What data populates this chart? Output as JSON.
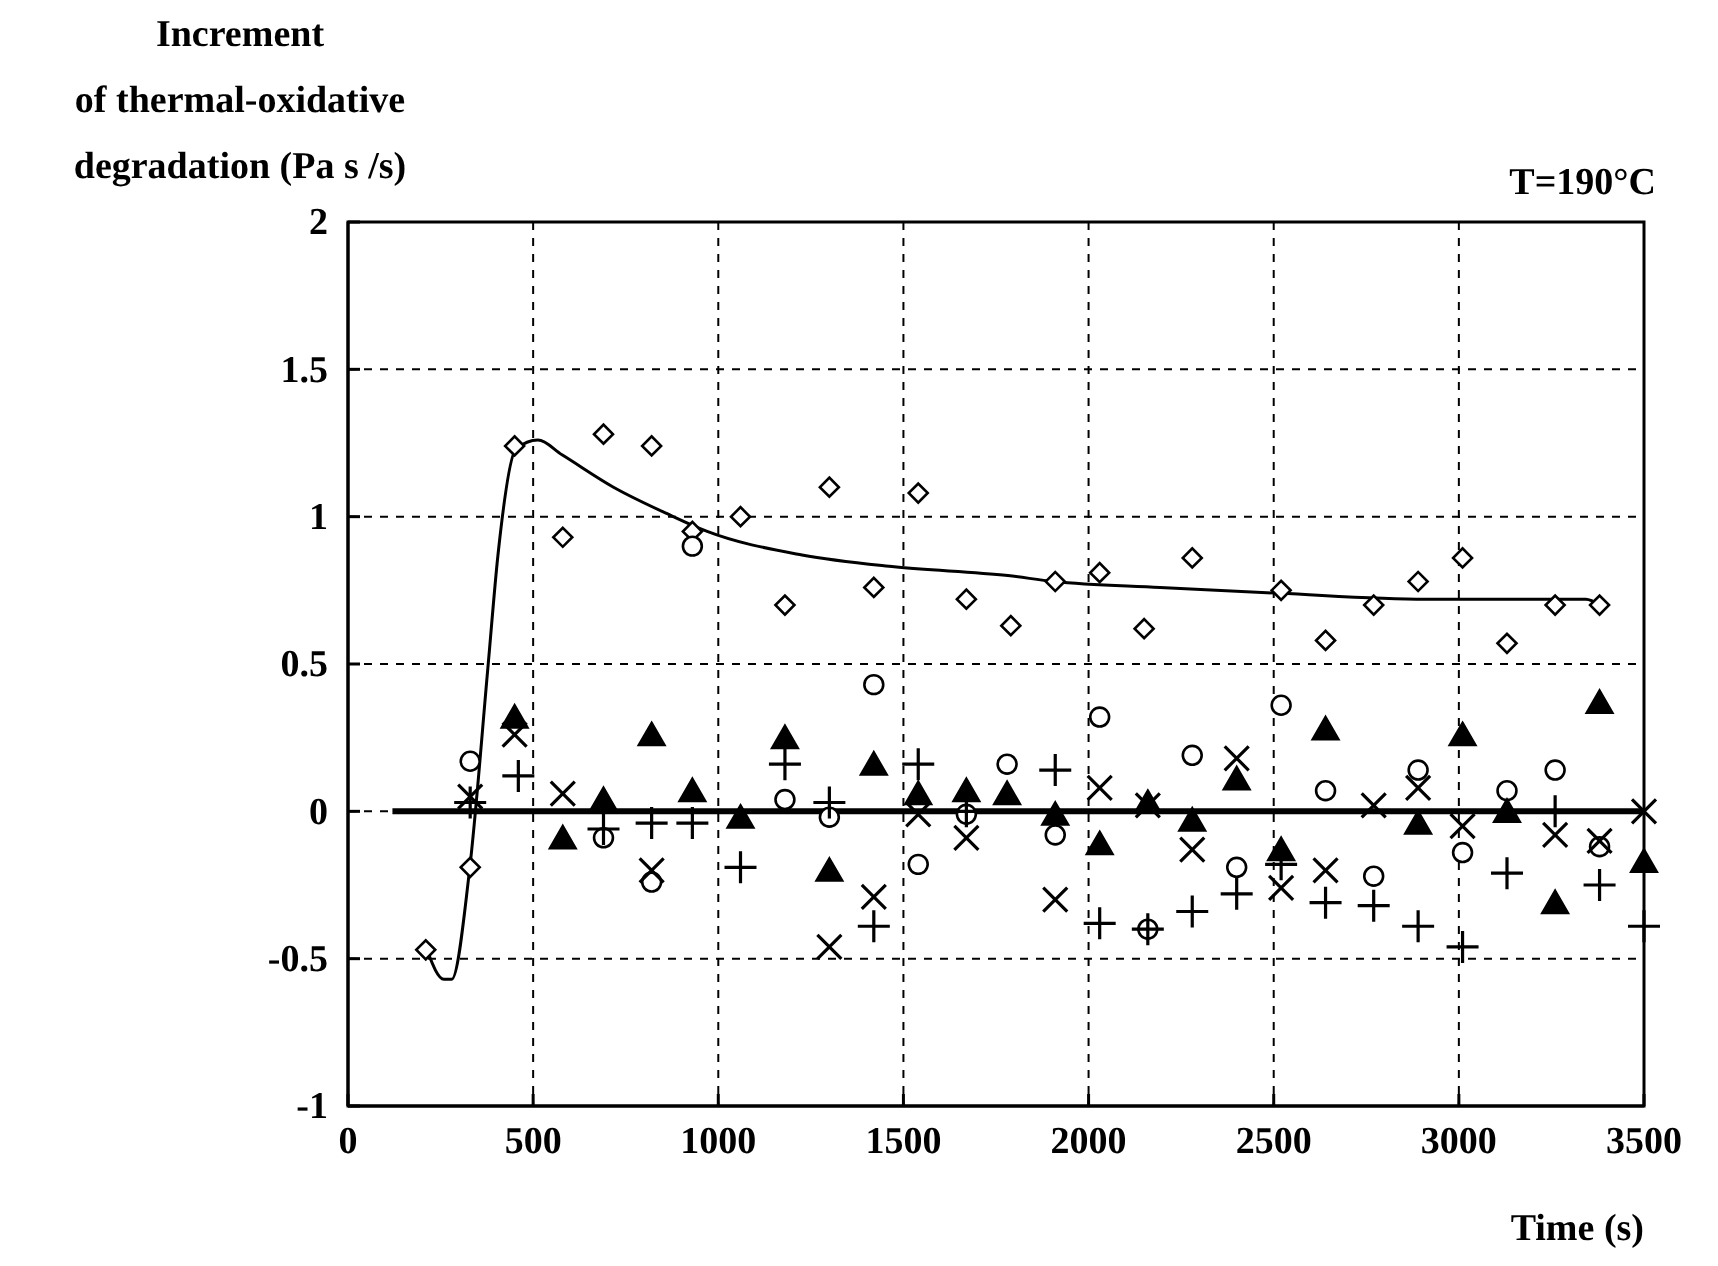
{
  "chart_data": {
    "type": "scatter",
    "ylabel": "Increment\nof thermal-oxidative\ndegradation (Pa s /s)",
    "xlabel": "Time (s)",
    "annotations": [
      "T=190°C"
    ],
    "xlim": [
      0,
      3500
    ],
    "ylim": [
      -1,
      2
    ],
    "xticks": [
      0,
      500,
      1000,
      1500,
      2000,
      2500,
      3000,
      3500
    ],
    "yticks": [
      -1,
      -0.5,
      0,
      0.5,
      1,
      1.5,
      2
    ],
    "grid": true,
    "series": [
      {
        "type": "scatter",
        "marker": "diamond",
        "color": "#000000",
        "x": [
          210,
          330,
          450,
          580,
          690,
          820,
          930,
          1060,
          1180,
          1300,
          1420,
          1540,
          1670,
          1790,
          1910,
          2030,
          2150,
          2280,
          2520,
          2640,
          2770,
          2890,
          3010,
          3130,
          3260,
          3380
        ],
        "values": [
          -0.47,
          -0.19,
          1.24,
          0.93,
          1.28,
          1.24,
          0.95,
          1.0,
          0.7,
          1.1,
          0.76,
          1.08,
          0.72,
          0.63,
          0.78,
          0.81,
          0.62,
          0.86,
          0.75,
          0.58,
          0.7,
          0.78,
          0.86,
          0.57,
          0.7,
          0.7
        ]
      },
      {
        "type": "scatter",
        "marker": "circle",
        "color": "#000000",
        "x": [
          330,
          690,
          820,
          930,
          1180,
          1300,
          1420,
          1540,
          1670,
          1780,
          1910,
          2030,
          2160,
          2280,
          2400,
          2520,
          2640,
          2770,
          2890,
          3010,
          3130,
          3260,
          3380
        ],
        "values": [
          0.17,
          -0.09,
          -0.24,
          0.9,
          0.04,
          -0.02,
          0.43,
          -0.18,
          -0.01,
          0.16,
          -0.08,
          0.32,
          -0.4,
          0.19,
          -0.19,
          0.36,
          0.07,
          -0.22,
          0.14,
          -0.14,
          0.07,
          0.14,
          -0.12
        ]
      },
      {
        "type": "scatter",
        "marker": "triangle",
        "color": "#000000",
        "x": [
          450,
          580,
          690,
          820,
          930,
          1060,
          1180,
          1300,
          1420,
          1540,
          1670,
          1780,
          1910,
          2030,
          2160,
          2280,
          2400,
          2520,
          2640,
          2890,
          3010,
          3130,
          3260,
          3380,
          3500
        ],
        "values": [
          0.31,
          -0.1,
          0.03,
          0.25,
          0.06,
          -0.03,
          0.24,
          -0.21,
          0.15,
          0.05,
          0.06,
          0.05,
          -0.02,
          -0.12,
          0.02,
          -0.04,
          0.1,
          -0.14,
          0.27,
          -0.05,
          0.25,
          -0.01,
          -0.32,
          0.36,
          -0.18
        ]
      },
      {
        "type": "scatter",
        "marker": "plus",
        "color": "#000000",
        "x": [
          330,
          460,
          690,
          820,
          930,
          1060,
          1180,
          1300,
          1420,
          1540,
          1670,
          1910,
          2030,
          2160,
          2280,
          2400,
          2520,
          2640,
          2770,
          2890,
          3010,
          3130,
          3260,
          3380,
          3500
        ],
        "values": [
          0.03,
          0.12,
          -0.06,
          -0.04,
          -0.04,
          -0.19,
          0.16,
          0.03,
          -0.39,
          0.16,
          0.0,
          0.14,
          -0.38,
          -0.4,
          -0.34,
          -0.28,
          -0.18,
          -0.31,
          -0.32,
          -0.39,
          -0.46,
          -0.21,
          0.0,
          -0.25,
          -0.39
        ]
      },
      {
        "type": "scatter",
        "marker": "cross",
        "color": "#000000",
        "x": [
          330,
          450,
          580,
          820,
          1300,
          1420,
          1540,
          1670,
          1910,
          2030,
          2160,
          2280,
          2400,
          2520,
          2640,
          2770,
          2890,
          3010,
          3260,
          3380,
          3500
        ],
        "values": [
          0.05,
          0.26,
          0.06,
          -0.2,
          -0.46,
          -0.29,
          -0.01,
          -0.09,
          -0.3,
          0.08,
          0.02,
          -0.13,
          0.18,
          -0.26,
          -0.2,
          0.02,
          0.08,
          -0.05,
          -0.08,
          -0.1,
          0.0
        ]
      },
      {
        "type": "line",
        "color": "#000000",
        "x": [
          213,
          259,
          280,
          329,
          378,
          405,
          454,
          513,
          578,
          717,
          862,
          970,
          1226,
          1475,
          1782,
          1907,
          2193,
          2517,
          2911,
          3343,
          3381
        ],
        "values": [
          -0.47,
          -0.57,
          -0.57,
          -0.19,
          0.49,
          0.87,
          1.23,
          1.26,
          1.21,
          1.1,
          1.01,
          0.95,
          0.87,
          0.83,
          0.8,
          0.78,
          0.76,
          0.74,
          0.72,
          0.72,
          0.7
        ]
      },
      {
        "type": "line",
        "color": "#000000",
        "x": [
          120,
          3500
        ],
        "values": [
          0,
          0
        ]
      }
    ]
  }
}
